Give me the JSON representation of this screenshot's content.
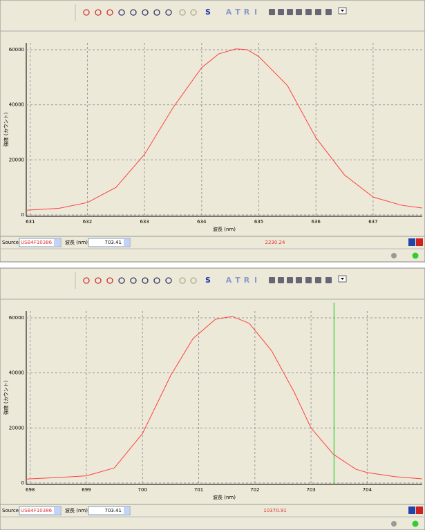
{
  "chart_data": [
    {
      "type": "line",
      "x_label": "波長 (nm)",
      "y_label": "強度 (カウント)",
      "xlim": [
        630.93,
        637.86
      ],
      "ylim": [
        -500,
        62500
      ],
      "xticks": [
        631,
        632,
        633,
        634,
        635,
        636,
        637
      ],
      "yticks": [
        0,
        20000,
        40000,
        60000
      ],
      "grid": true,
      "series": [
        {
          "color": "#ff4040",
          "x": [
            630.93,
            631,
            631.5,
            632,
            632.5,
            633,
            633.5,
            634,
            634.3,
            634.6,
            634.8,
            635,
            635.5,
            636,
            636.5,
            637,
            637.5,
            637.86
          ],
          "values": [
            1700,
            1800,
            2400,
            4500,
            10000,
            22000,
            39000,
            53500,
            58500,
            60300,
            60000,
            57500,
            47000,
            28000,
            14500,
            6500,
            3500,
            2500
          ]
        }
      ]
    },
    {
      "type": "line",
      "x_label": "波長 (nm)",
      "y_label": "強度 (カウント)",
      "xlim": [
        697.93,
        704.98
      ],
      "ylim": [
        -500,
        62500
      ],
      "xticks": [
        698,
        699,
        700,
        701,
        702,
        703,
        704
      ],
      "yticks": [
        0,
        20000,
        40000,
        60000
      ],
      "grid": true,
      "series": [
        {
          "color": "#ff4040",
          "x": [
            697.93,
            698,
            698.5,
            699,
            699.5,
            700,
            700.5,
            700.9,
            701.3,
            701.6,
            701.9,
            702.3,
            702.7,
            703,
            703.4,
            703.8,
            704,
            704.5,
            704.98
          ],
          "values": [
            1400,
            1500,
            2000,
            2600,
            5500,
            18000,
            39000,
            52500,
            59500,
            60500,
            58000,
            48000,
            33000,
            20000,
            10400,
            5000,
            3800,
            2300,
            1500
          ]
        }
      ],
      "cursor_color": "#33cc33"
    }
  ],
  "panels": [
    {
      "toolbar_letters": [
        "S",
        "A",
        "T",
        "R",
        "I"
      ],
      "source_label": "Source:",
      "source_value": "USB4F10386",
      "wavelength_label": "波長 (nm):",
      "wavelength": 703.41,
      "status": "2230.24"
    },
    {
      "toolbar_letters": [
        "S",
        "A",
        "T",
        "R",
        "I"
      ],
      "source_label": "Source:",
      "source_value": "USB4F10386",
      "wavelength_label": "波長 (nm):",
      "wavelength": 703.41,
      "status": "10370.91"
    }
  ]
}
